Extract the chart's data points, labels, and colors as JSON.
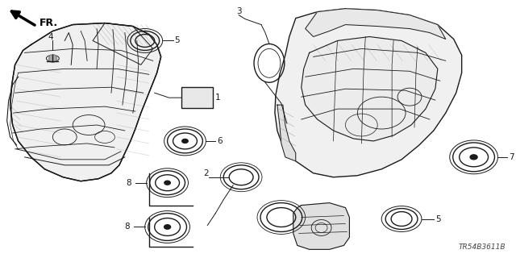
{
  "part_number": "TR54B3611B",
  "bg_color": "#ffffff",
  "line_color": "#1a1a1a",
  "gray_color": "#888888",
  "light_gray": "#cccccc"
}
